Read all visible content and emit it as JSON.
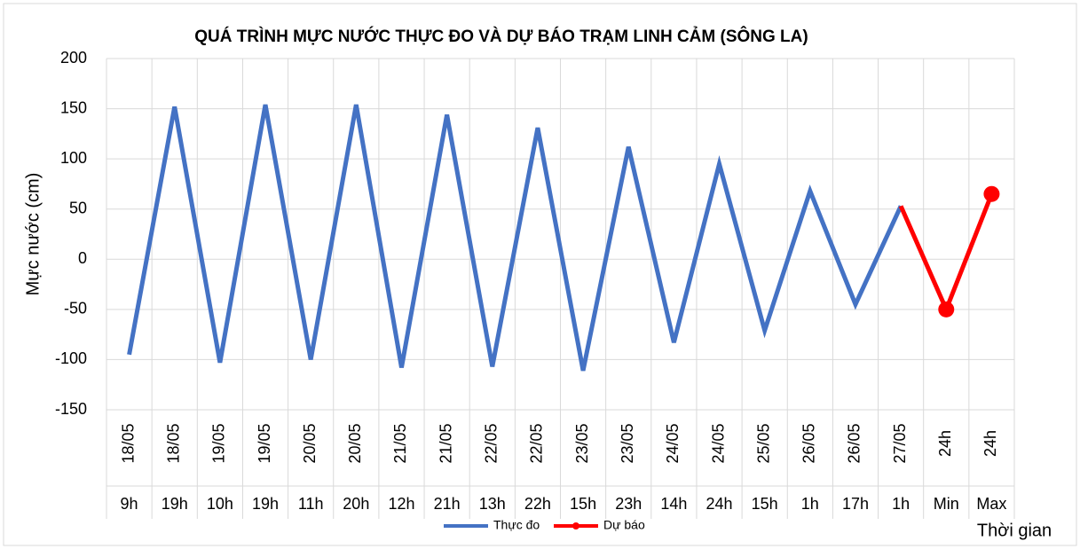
{
  "chart_data": {
    "type": "line",
    "title": "QUÁ TRÌNH MỰC NƯỚC THỰC ĐO VÀ DỰ BÁO TRẠM LINH CẢM (SÔNG LA)",
    "y_label": "Mực nước (cm)",
    "x_label": "Thời gian",
    "categories": [
      [
        "18/05",
        "9h"
      ],
      [
        "18/05",
        "19h"
      ],
      [
        "19/05",
        "10h"
      ],
      [
        "19/05",
        "19h"
      ],
      [
        "20/05",
        "11h"
      ],
      [
        "20/05",
        "20h"
      ],
      [
        "21/05",
        "12h"
      ],
      [
        "21/05",
        "21h"
      ],
      [
        "22/05",
        "13h"
      ],
      [
        "22/05",
        "22h"
      ],
      [
        "23/05",
        "15h"
      ],
      [
        "23/05",
        "23h"
      ],
      [
        "24/05",
        "14h"
      ],
      [
        "24/05",
        "24h"
      ],
      [
        "25/05",
        "15h"
      ],
      [
        "26/05",
        "1h"
      ],
      [
        "26/05",
        "17h"
      ],
      [
        "27/05",
        "1h"
      ],
      [
        "24h",
        "Min"
      ],
      [
        "24h",
        "Max"
      ]
    ],
    "series": [
      {
        "name": "Thực đo",
        "color": "#4472c4",
        "values": [
          -95,
          152,
          -103,
          154,
          -100,
          154,
          -108,
          144,
          -107,
          131,
          -111,
          112,
          -83,
          95,
          -71,
          68,
          -45,
          53,
          null,
          null
        ]
      },
      {
        "name": "Dự báo",
        "color": "#ff0000",
        "values": [
          null,
          null,
          null,
          null,
          null,
          null,
          null,
          null,
          null,
          null,
          null,
          null,
          null,
          null,
          null,
          null,
          null,
          53,
          -50,
          65
        ]
      }
    ],
    "ylim": [
      -150,
      200
    ],
    "yticks": [
      -150,
      -100,
      -50,
      0,
      50,
      100,
      150,
      200
    ],
    "grid": true,
    "legend": "bottom"
  }
}
